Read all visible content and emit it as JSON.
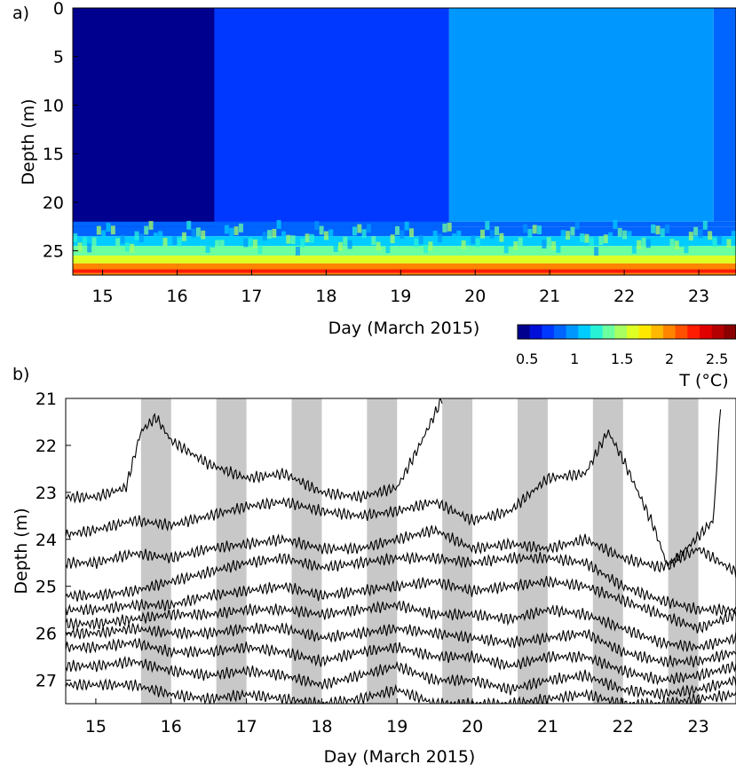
{
  "panels": [
    {
      "panel_label": "a)",
      "ylabel": "Depth (m)",
      "xlabel": "Day (March 2015)",
      "colorbar": {
        "label": "T (°C)",
        "ticks": [
          "0.5",
          "1",
          "1.5",
          "2",
          "2.5"
        ],
        "tick_values": [
          0.5,
          1,
          1.5,
          2,
          2.5
        ],
        "range": [
          0.4,
          2.7
        ],
        "colors": [
          "#00008f",
          "#0010d8",
          "#0038ff",
          "#0064ff",
          "#0098ff",
          "#00ccff",
          "#28f2d6",
          "#6cffa0",
          "#a8ff60",
          "#ddff24",
          "#ffe800",
          "#ffb800",
          "#ff8400",
          "#ff5000",
          "#ff1c00",
          "#e00000",
          "#b40000",
          "#8a0000"
        ]
      }
    },
    {
      "panel_label": "b)",
      "ylabel": "Depth (m)",
      "xlabel": "Day (March 2015)",
      "night_shading_color": "#c8c8c8"
    }
  ],
  "chart_data": [
    {
      "type": "heatmap",
      "title": "",
      "xlabel": "Day (March 2015)",
      "ylabel": "Depth (m)",
      "xlim": [
        14.6,
        23.5
      ],
      "ylim": [
        27.5,
        0
      ],
      "x_ticks": [
        15,
        16,
        17,
        18,
        19,
        20,
        21,
        22,
        23
      ],
      "y_ticks": [
        0,
        5,
        10,
        15,
        20,
        25
      ],
      "colorbar_label": "T (°C)",
      "regions": [
        {
          "x": [
            14.6,
            16.5
          ],
          "depth": [
            0,
            23
          ],
          "T": 0.5
        },
        {
          "x": [
            16.5,
            19.65
          ],
          "depth": [
            0,
            23
          ],
          "T": 0.75
        },
        {
          "x": [
            19.65,
            23.2
          ],
          "depth": [
            0,
            22
          ],
          "T": 0.95
        },
        {
          "x": [
            23.2,
            23.5
          ],
          "depth": [
            0,
            22
          ],
          "T": 0.85
        }
      ],
      "bottom_layers": [
        {
          "depth": [
            22.5,
            23.5
          ],
          "T": 0.9
        },
        {
          "depth": [
            23.5,
            24.5
          ],
          "T": 1.05
        },
        {
          "depth": [
            24.5,
            25.5
          ],
          "T": 1.3
        },
        {
          "depth": [
            25.5,
            26.3
          ],
          "T": 1.6
        },
        {
          "depth": [
            26.3,
            26.9
          ],
          "T": 1.95
        },
        {
          "depth": [
            26.9,
            27.3
          ],
          "T": 2.3
        },
        {
          "depth": [
            27.3,
            27.5
          ],
          "T": 2.0
        }
      ]
    },
    {
      "type": "line",
      "title": "",
      "xlabel": "Day (March 2015)",
      "ylabel": "Depth (m)",
      "xlim": [
        14.6,
        23.5
      ],
      "ylim": [
        27.5,
        21
      ],
      "x_ticks": [
        15,
        16,
        17,
        18,
        19,
        20,
        21,
        22,
        23
      ],
      "y_ticks": [
        21,
        22,
        23,
        24,
        25,
        26,
        27
      ],
      "night_shading": [
        [
          15.6,
          16.0
        ],
        [
          16.6,
          17.0
        ],
        [
          17.6,
          18.0
        ],
        [
          18.6,
          19.0
        ],
        [
          19.6,
          20.0
        ],
        [
          20.6,
          21.0
        ],
        [
          21.6,
          22.0
        ],
        [
          22.6,
          23.0
        ]
      ],
      "series": [
        {
          "x": [
            14.6,
            15.0,
            15.4,
            15.6,
            15.8,
            16.0,
            16.5,
            17.0,
            17.5,
            18.0,
            18.5,
            19.0,
            19.3,
            19.6
          ],
          "values": [
            23.1,
            23.1,
            22.9,
            21.7,
            21.4,
            21.9,
            22.4,
            22.7,
            22.6,
            23.0,
            23.1,
            22.9,
            22.0,
            21.0
          ]
        },
        {
          "x": [
            14.6,
            15.0,
            15.5,
            16.0,
            16.5,
            17.0,
            17.5,
            18.0,
            18.5,
            19.0,
            19.5,
            20.0,
            20.5,
            21.0,
            21.5,
            21.8,
            22.0,
            22.4,
            22.6,
            22.9,
            23.2,
            23.3
          ],
          "values": [
            23.9,
            23.8,
            23.6,
            23.7,
            23.5,
            23.3,
            23.2,
            23.4,
            23.5,
            23.4,
            23.2,
            23.6,
            23.4,
            22.7,
            22.6,
            21.7,
            22.3,
            23.7,
            24.6,
            24.1,
            23.6,
            21.0
          ]
        },
        {
          "x": [
            14.6,
            15.0,
            15.5,
            16.0,
            16.5,
            17.0,
            17.5,
            18.0,
            18.5,
            19.0,
            19.5,
            20.0,
            20.5,
            21.0,
            21.5,
            22.0,
            22.5,
            23.0,
            23.5
          ],
          "values": [
            24.5,
            24.5,
            24.3,
            24.4,
            24.2,
            24.1,
            24.0,
            24.2,
            24.2,
            24.0,
            23.8,
            24.2,
            24.1,
            24.2,
            24.0,
            24.4,
            24.6,
            24.2,
            24.7
          ]
        },
        {
          "x": [
            14.6,
            15.0,
            15.5,
            16.0,
            16.5,
            17.0,
            17.5,
            18.0,
            18.5,
            19.0,
            19.5,
            20.0,
            20.5,
            21.0,
            21.5,
            22.0,
            22.5,
            23.0,
            23.5
          ],
          "values": [
            25.2,
            25.2,
            25.1,
            24.9,
            24.7,
            24.5,
            24.4,
            24.6,
            24.5,
            24.4,
            24.4,
            24.5,
            24.4,
            24.4,
            24.5,
            25.0,
            25.3,
            25.5,
            25.5
          ]
        },
        {
          "x": [
            14.6,
            15.0,
            15.5,
            16.0,
            16.5,
            17.0,
            17.5,
            18.0,
            18.5,
            19.0,
            19.5,
            20.0,
            20.5,
            21.0,
            21.5,
            22.0,
            22.5,
            23.0,
            23.5
          ],
          "values": [
            25.5,
            25.5,
            25.4,
            25.4,
            25.2,
            25.1,
            25.0,
            25.2,
            25.1,
            25.0,
            24.9,
            25.1,
            25.0,
            24.9,
            25.0,
            25.3,
            25.6,
            25.9,
            25.6
          ]
        },
        {
          "x": [
            14.6,
            15.0,
            15.5,
            16.0,
            16.5,
            17.0,
            17.5,
            18.0,
            18.5,
            19.0,
            19.5,
            20.0,
            20.5,
            21.0,
            21.5,
            22.0,
            22.5,
            23.0,
            23.5
          ],
          "values": [
            25.8,
            25.8,
            25.7,
            25.6,
            25.6,
            25.5,
            25.5,
            25.6,
            25.5,
            25.4,
            25.6,
            25.6,
            25.7,
            25.5,
            25.6,
            25.9,
            26.2,
            26.3,
            26.1
          ]
        },
        {
          "x": [
            14.6,
            15.0,
            15.5,
            16.0,
            16.5,
            17.0,
            17.5,
            18.0,
            18.5,
            19.0,
            19.5,
            20.0,
            20.5,
            21.0,
            21.5,
            22.0,
            22.5,
            23.0,
            23.5
          ],
          "values": [
            26.0,
            26.0,
            25.9,
            26.0,
            26.0,
            25.9,
            25.9,
            26.1,
            26.0,
            25.9,
            26.0,
            26.1,
            26.2,
            26.1,
            26.0,
            26.4,
            26.6,
            26.6,
            26.4
          ]
        },
        {
          "x": [
            14.6,
            15.0,
            15.5,
            16.0,
            16.5,
            17.0,
            17.5,
            18.0,
            18.5,
            19.0,
            19.5,
            20.0,
            20.5,
            21.0,
            21.5,
            22.0,
            22.5,
            23.0,
            23.5
          ],
          "values": [
            26.3,
            26.3,
            26.2,
            26.4,
            26.4,
            26.3,
            26.4,
            26.6,
            26.4,
            26.3,
            26.5,
            26.5,
            26.7,
            26.5,
            26.5,
            26.8,
            27.0,
            26.9,
            26.7
          ]
        },
        {
          "x": [
            14.6,
            15.0,
            15.5,
            16.0,
            16.5,
            17.0,
            17.5,
            18.0,
            18.5,
            19.0,
            19.5,
            20.0,
            20.5,
            21.0,
            21.5,
            22.0,
            22.5,
            23.0,
            23.5
          ],
          "values": [
            26.7,
            26.7,
            26.6,
            26.8,
            26.9,
            26.8,
            26.9,
            27.1,
            26.9,
            26.7,
            27.0,
            27.0,
            27.2,
            27.0,
            26.9,
            27.2,
            27.3,
            27.2,
            27.0
          ]
        },
        {
          "x": [
            14.6,
            15.0,
            15.5,
            16.0,
            16.5,
            17.0,
            17.5,
            18.0,
            18.5,
            19.0,
            19.5,
            20.0,
            20.5,
            21.0,
            21.5,
            22.0,
            22.5,
            23.0,
            23.5
          ],
          "values": [
            27.1,
            27.1,
            27.1,
            27.3,
            27.4,
            27.3,
            27.4,
            27.5,
            27.4,
            27.2,
            27.5,
            27.5,
            27.5,
            27.4,
            27.3,
            27.5,
            27.5,
            27.4,
            27.3
          ]
        }
      ]
    }
  ]
}
